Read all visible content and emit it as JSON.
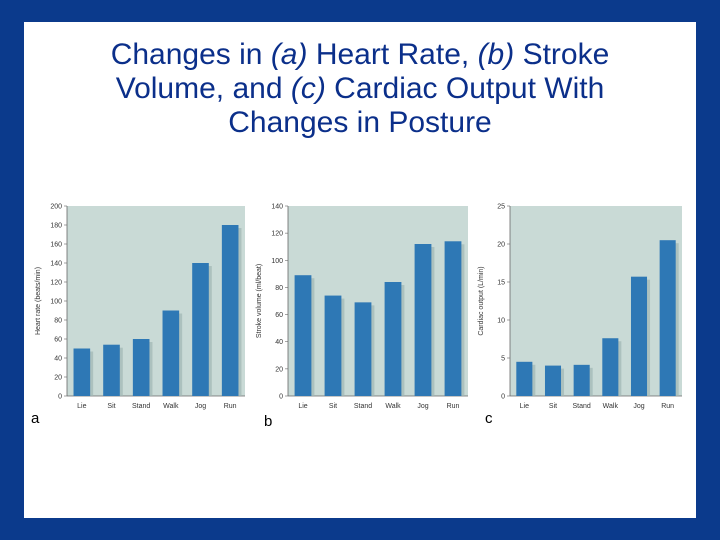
{
  "title": {
    "p1": "Changes in ",
    "a": "(a)",
    "p2": " Heart Rate, ",
    "b": "(b)",
    "p3": " Stroke",
    "p4": "Volume, and ",
    "c": "(c)",
    "p5": " Cardiac Output With",
    "p6": "Changes in Posture"
  },
  "colors": {
    "background_border": "#0b3a8c",
    "plot_background": "#c9dad6",
    "bar": "#2e78b5",
    "title": "#0b2f8a"
  },
  "chart_data": [
    {
      "type": "bar",
      "panel_label": "a",
      "categories": [
        "Lie",
        "Sit",
        "Stand",
        "Walk",
        "Jog",
        "Run"
      ],
      "values": [
        50,
        54,
        60,
        90,
        140,
        180
      ],
      "ylabel": "Heart rate (beats/min)",
      "ylim": [
        0,
        200
      ],
      "yticks": [
        0,
        20,
        40,
        60,
        80,
        100,
        120,
        140,
        160,
        180,
        200
      ],
      "grid": false
    },
    {
      "type": "bar",
      "panel_label": "b",
      "categories": [
        "Lie",
        "Sit",
        "Stand",
        "Walk",
        "Jog",
        "Run"
      ],
      "values": [
        89,
        74,
        69,
        84,
        112,
        114
      ],
      "ylabel": "Stroke volume (ml/beat)",
      "ylim": [
        0,
        140
      ],
      "yticks": [
        0,
        20,
        40,
        60,
        80,
        100,
        120,
        140
      ],
      "grid": false
    },
    {
      "type": "bar",
      "panel_label": "c",
      "categories": [
        "Lie",
        "Sit",
        "Stand",
        "Walk",
        "Jog",
        "Run"
      ],
      "values": [
        4.5,
        4.0,
        4.1,
        7.6,
        15.7,
        20.5
      ],
      "ylabel": "Cardiac output (L/min)",
      "ylim": [
        0,
        25
      ],
      "yticks": [
        0,
        5,
        10,
        15,
        20,
        25
      ],
      "grid": false
    }
  ]
}
